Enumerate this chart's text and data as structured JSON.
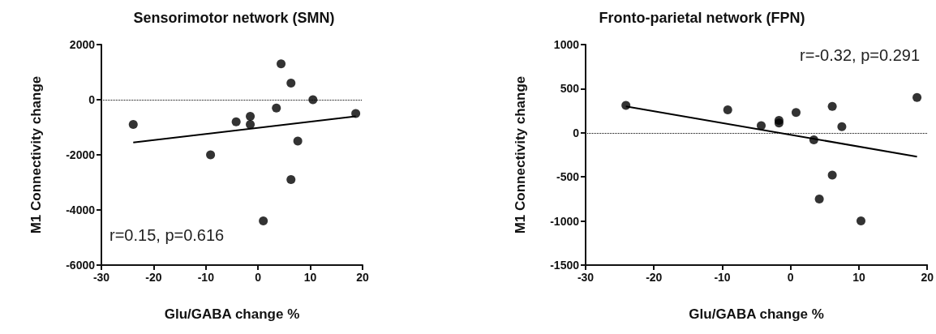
{
  "chart_data": [
    {
      "type": "scatter",
      "title": "Sensorimotor network (SMN)",
      "xlabel": "Glu/GABA change %",
      "ylabel": "M1 Connectivity change",
      "annotations": [
        "r=0.15, p=0.616"
      ],
      "grid": false,
      "xlim": [
        -30,
        20
      ],
      "xticks": [
        -30,
        -20,
        -10,
        0,
        10,
        20
      ],
      "ylim": [
        -6000,
        2000
      ],
      "yticks": [
        -6000,
        -4000,
        -2000,
        0,
        2000
      ],
      "series": [
        {
          "color": "#000000",
          "marker": "circle",
          "x": [
            -23.9,
            -9.1,
            -4.2,
            -1.5,
            -1.5,
            1.0,
            3.5,
            4.4,
            6.3,
            6.3,
            7.6,
            10.5,
            18.7
          ],
          "values": [
            -900,
            -2000,
            -800,
            -600,
            -900,
            -4400,
            -300,
            1300,
            600,
            -2900,
            -1500,
            0,
            -500
          ]
        },
        {
          "type": "line",
          "marker": "none",
          "color": "#000000",
          "x": [
            -23.9,
            18.7
          ],
          "values": [
            -1550,
            -600
          ]
        }
      ],
      "ref_lines": [
        {
          "axis": "y",
          "value": 0,
          "line_style": "dotted",
          "color": "#000000"
        }
      ]
    },
    {
      "type": "scatter",
      "title": "Fronto-parietal network (FPN)",
      "xlabel": "Glu/GABA change %",
      "ylabel": "M1 Connectivity change",
      "annotations": [
        "r=-0.32, p=0.291"
      ],
      "grid": false,
      "xlim": [
        -30,
        20
      ],
      "xticks": [
        -30,
        -20,
        -10,
        0,
        10,
        20
      ],
      "ylim": [
        -1500,
        1000
      ],
      "yticks": [
        -1500,
        -1000,
        -500,
        0,
        500,
        1000
      ],
      "series": [
        {
          "color": "#000000",
          "marker": "circle",
          "x": [
            -24.1,
            -9.2,
            -4.3,
            -1.7,
            -1.7,
            0.8,
            3.4,
            4.2,
            6.1,
            6.1,
            7.5,
            10.3,
            18.5
          ],
          "values": [
            310,
            260,
            80,
            140,
            110,
            230,
            -80,
            -750,
            300,
            -480,
            70,
            -1000,
            400
          ]
        },
        {
          "type": "line",
          "marker": "none",
          "color": "#000000",
          "x": [
            -24.1,
            18.5
          ],
          "values": [
            300,
            -270
          ]
        }
      ],
      "ref_lines": [
        {
          "axis": "y",
          "value": 0,
          "line_style": "dotted",
          "color": "#000000"
        }
      ]
    }
  ]
}
